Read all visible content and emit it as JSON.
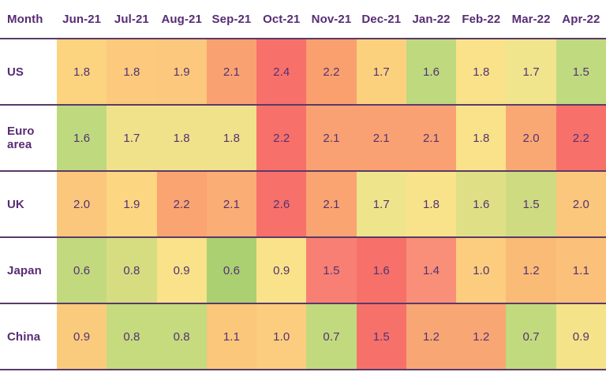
{
  "table": {
    "header": {
      "label": "Month",
      "months": [
        "Jun-21",
        "Jul-21",
        "Aug-21",
        "Sep-21",
        "Oct-21",
        "Nov-21",
        "Dec-21",
        "Jan-22",
        "Feb-22",
        "Mar-22",
        "Apr-22"
      ]
    },
    "rows": [
      {
        "label": "US",
        "values": [
          "1.8",
          "1.8",
          "1.9",
          "2.1",
          "2.4",
          "2.2",
          "1.7",
          "1.6",
          "1.8",
          "1.7",
          "1.5"
        ],
        "colors": [
          "#fcd37f",
          "#fcc97d",
          "#fcc87d",
          "#f9a171",
          "#f7706a",
          "#f9a06e",
          "#fcd17e",
          "#bed97e",
          "#f9e289",
          "#f0e48c",
          "#c0da80"
        ]
      },
      {
        "label": "Euro area",
        "values": [
          "1.6",
          "1.7",
          "1.8",
          "1.8",
          "2.2",
          "2.1",
          "2.1",
          "2.1",
          "1.8",
          "2.0",
          "2.2"
        ],
        "colors": [
          "#bed97e",
          "#efe28b",
          "#efe28b",
          "#efe28b",
          "#f7706a",
          "#f9a172",
          "#f9a172",
          "#f9a172",
          "#f9e289",
          "#faa873",
          "#f7706a"
        ]
      },
      {
        "label": "UK",
        "values": [
          "2.0",
          "1.9",
          "2.2",
          "2.1",
          "2.6",
          "2.1",
          "1.7",
          "1.8",
          "1.6",
          "1.5",
          "2.0"
        ],
        "colors": [
          "#fbc77c",
          "#fcd681",
          "#f9a471",
          "#faad74",
          "#f7706a",
          "#f9a471",
          "#eee48c",
          "#f8e38a",
          "#dfe086",
          "#cedb81",
          "#fbc77c"
        ]
      },
      {
        "label": "Japan",
        "values": [
          "0.6",
          "0.8",
          "0.9",
          "0.6",
          "0.9",
          "1.5",
          "1.6",
          "1.4",
          "1.0",
          "1.2",
          "1.1"
        ],
        "colors": [
          "#c3d97e",
          "#d6dd81",
          "#f9e289",
          "#aad072",
          "#f9e289",
          "#f87f73",
          "#f7706a",
          "#f98f78",
          "#fccd7e",
          "#fabb77",
          "#fbc07a"
        ]
      },
      {
        "label": "China",
        "values": [
          "0.9",
          "0.8",
          "0.8",
          "1.1",
          "1.0",
          "0.7",
          "1.5",
          "1.2",
          "1.2",
          "0.7",
          "0.9"
        ],
        "colors": [
          "#fbcb7d",
          "#c6da7e",
          "#c6da7e",
          "#fbc77b",
          "#fccd7e",
          "#c1da7d",
          "#f7716b",
          "#f9a675",
          "#f9a675",
          "#c1da7d",
          "#f5e389"
        ]
      }
    ]
  },
  "theme": {
    "header_text_color": "#582c75",
    "value_text_color": "#533272",
    "divider_color": "#5a3a68",
    "background": "#ffffff",
    "heat_low_color": "#aad072",
    "heat_mid_color": "#f9e289",
    "heat_high_color": "#f7706a"
  },
  "chart_data": {
    "type": "heatmap",
    "title": "",
    "xlabel": "Month",
    "ylabel": "",
    "x": [
      "Jun-21",
      "Jul-21",
      "Aug-21",
      "Sep-21",
      "Oct-21",
      "Nov-21",
      "Dec-21",
      "Jan-22",
      "Feb-22",
      "Mar-22",
      "Apr-22"
    ],
    "y": [
      "US",
      "Euro area",
      "UK",
      "Japan",
      "China"
    ],
    "series": [
      {
        "name": "US",
        "values": [
          1.8,
          1.8,
          1.9,
          2.1,
          2.4,
          2.2,
          1.7,
          1.6,
          1.8,
          1.7,
          1.5
        ]
      },
      {
        "name": "Euro area",
        "values": [
          1.6,
          1.7,
          1.8,
          1.8,
          2.2,
          2.1,
          2.1,
          2.1,
          1.8,
          2.0,
          2.2
        ]
      },
      {
        "name": "UK",
        "values": [
          2.0,
          1.9,
          2.2,
          2.1,
          2.6,
          2.1,
          1.7,
          1.8,
          1.6,
          1.5,
          2.0
        ]
      },
      {
        "name": "Japan",
        "values": [
          0.6,
          0.8,
          0.9,
          0.6,
          0.9,
          1.5,
          1.6,
          1.4,
          1.0,
          1.2,
          1.1
        ]
      },
      {
        "name": "China",
        "values": [
          0.9,
          0.8,
          0.8,
          1.1,
          1.0,
          0.7,
          1.5,
          1.2,
          1.2,
          0.7,
          0.9
        ]
      }
    ],
    "value_range": [
      0.6,
      2.6
    ],
    "colorscale": "green-yellow-orange-red (low to high)",
    "grid": false,
    "legend": "none"
  }
}
